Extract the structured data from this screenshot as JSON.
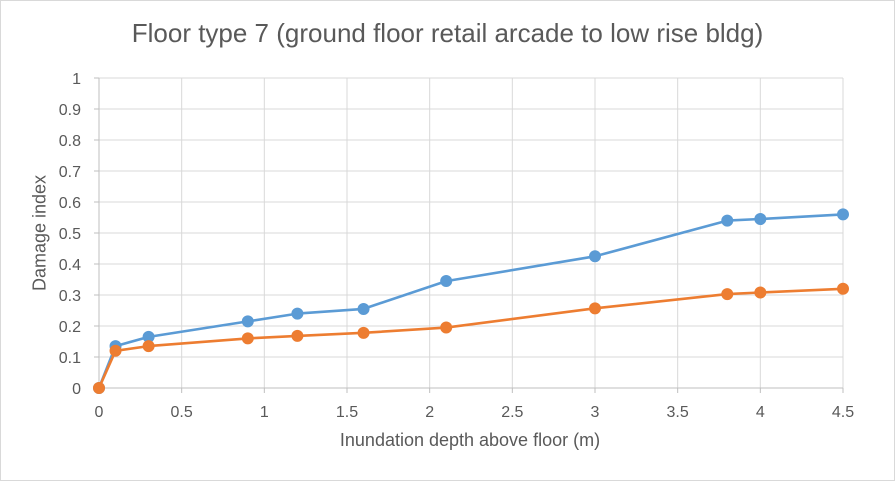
{
  "chart_data": {
    "type": "line",
    "title": "Floor type 7 (ground floor retail arcade to low rise bldg)",
    "xlabel": "Inundation depth above floor (m)",
    "ylabel": "Damage index",
    "xlim": [
      0,
      4.5
    ],
    "ylim": [
      0,
      1
    ],
    "x_ticks": [
      "0",
      "0.5",
      "1",
      "1.5",
      "2",
      "2.5",
      "3",
      "3.5",
      "4",
      "4.5"
    ],
    "y_ticks": [
      "0",
      "0.1",
      "0.2",
      "0.3",
      "0.4",
      "0.5",
      "0.6",
      "0.7",
      "0.8",
      "0.9",
      "1"
    ],
    "grid": true,
    "legend": "none",
    "series": [
      {
        "color": "#5b9bd5",
        "x": [
          0,
          0.1,
          0.3,
          0.9,
          1.2,
          1.6,
          2.1,
          3,
          3.8,
          4,
          4.5
        ],
        "y": [
          0,
          0.135,
          0.165,
          0.215,
          0.24,
          0.255,
          0.345,
          0.425,
          0.54,
          0.545,
          0.56
        ]
      },
      {
        "color": "#ed7d31",
        "x": [
          0,
          0.1,
          0.3,
          0.9,
          1.2,
          1.6,
          2.1,
          3,
          3.8,
          4,
          4.5
        ],
        "y": [
          0,
          0.12,
          0.135,
          0.16,
          0.168,
          0.178,
          0.195,
          0.257,
          0.303,
          0.308,
          0.32
        ]
      }
    ]
  }
}
